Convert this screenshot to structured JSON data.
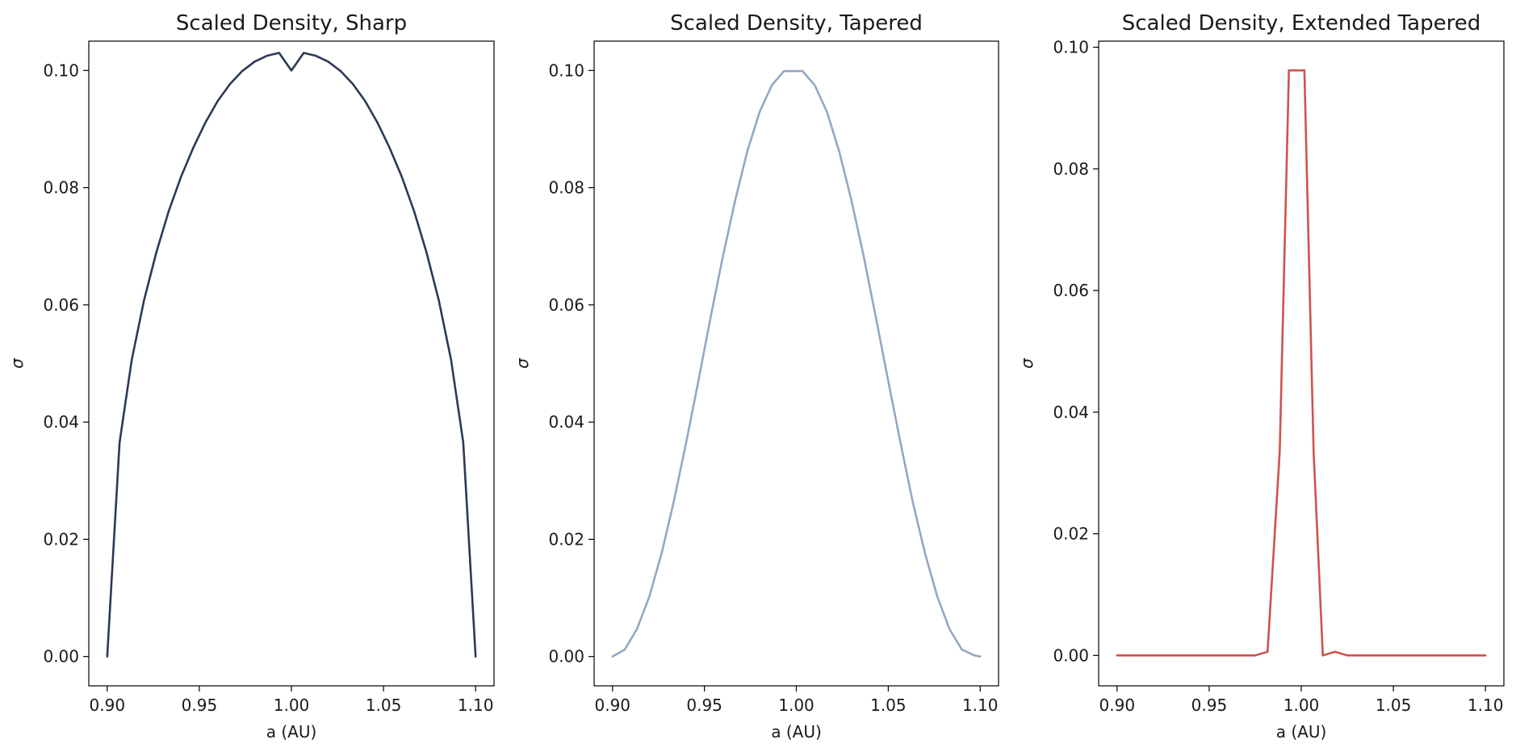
{
  "chart_data": [
    {
      "type": "line",
      "title": "Scaled Density, Sharp",
      "xlabel": "a (AU)",
      "ylabel": "σ",
      "xlim": [
        0.89,
        1.11
      ],
      "ylim": [
        -0.005,
        0.105
      ],
      "xticks": [
        0.9,
        0.95,
        1.0,
        1.05,
        1.1
      ],
      "xtick_labels": [
        "0.90",
        "0.95",
        "1.00",
        "1.05",
        "1.10"
      ],
      "yticks": [
        0.0,
        0.02,
        0.04,
        0.06,
        0.08,
        0.1
      ],
      "ytick_labels": [
        "0.00",
        "0.02",
        "0.04",
        "0.06",
        "0.08",
        "0.10"
      ],
      "grid": false,
      "series": [
        {
          "color": "#2b3a55",
          "x": [
            0.9,
            0.9067,
            0.9133,
            0.92,
            0.9267,
            0.9333,
            0.94,
            0.9467,
            0.9533,
            0.96,
            0.9667,
            0.9733,
            0.98,
            0.9867,
            0.9933,
            1.0,
            1.0067,
            1.0133,
            1.02,
            1.0267,
            1.0333,
            1.04,
            1.0467,
            1.0533,
            1.06,
            1.0667,
            1.0733,
            1.08,
            1.0867,
            1.0933,
            1.1
          ],
          "y": [
            0.0,
            0.0365,
            0.0506,
            0.0608,
            0.069,
            0.0759,
            0.0818,
            0.0868,
            0.0911,
            0.0948,
            0.0977,
            0.0999,
            0.1015,
            0.1025,
            0.103,
            0.1,
            0.103,
            0.1025,
            0.1015,
            0.0999,
            0.0977,
            0.0948,
            0.0911,
            0.0868,
            0.0818,
            0.0759,
            0.069,
            0.0608,
            0.0506,
            0.0365,
            0.0
          ]
        }
      ]
    },
    {
      "type": "line",
      "title": "Scaled Density, Tapered",
      "xlabel": "a (AU)",
      "ylabel": "σ",
      "xlim": [
        0.89,
        1.11
      ],
      "ylim": [
        -0.005,
        0.105
      ],
      "xticks": [
        0.9,
        0.95,
        1.0,
        1.05,
        1.1
      ],
      "xtick_labels": [
        "0.90",
        "0.95",
        "1.00",
        "1.05",
        "1.10"
      ],
      "yticks": [
        0.0,
        0.02,
        0.04,
        0.06,
        0.08,
        0.1
      ],
      "ytick_labels": [
        "0.00",
        "0.02",
        "0.04",
        "0.06",
        "0.08",
        "0.10"
      ],
      "grid": false,
      "series": [
        {
          "color": "#93a8c2",
          "x": [
            0.9,
            0.9067,
            0.9133,
            0.92,
            0.9267,
            0.9333,
            0.94,
            0.9467,
            0.9533,
            0.96,
            0.9667,
            0.9733,
            0.98,
            0.9867,
            0.9933,
            1.0033,
            1.01,
            1.0167,
            1.0233,
            1.03,
            1.0367,
            1.0433,
            1.05,
            1.0567,
            1.0633,
            1.07,
            1.0767,
            1.0833,
            1.09,
            1.0967,
            1.1
          ],
          "y": [
            0.0,
            0.0012,
            0.0047,
            0.0102,
            0.0176,
            0.0264,
            0.0364,
            0.047,
            0.0578,
            0.0682,
            0.0778,
            0.0862,
            0.0929,
            0.0975,
            0.0999,
            0.0999,
            0.0975,
            0.0929,
            0.0862,
            0.0778,
            0.0682,
            0.0578,
            0.047,
            0.0364,
            0.0264,
            0.0176,
            0.0102,
            0.0047,
            0.0012,
            0.0002,
            0.0
          ]
        }
      ]
    },
    {
      "type": "line",
      "title": "Scaled Density, Extended Tapered",
      "xlabel": "a (AU)",
      "ylabel": "σ",
      "xlim": [
        0.89,
        1.11
      ],
      "ylim": [
        -0.005,
        0.101
      ],
      "xticks": [
        0.9,
        0.95,
        1.0,
        1.05,
        1.1
      ],
      "xtick_labels": [
        "0.90",
        "0.95",
        "1.00",
        "1.05",
        "1.10"
      ],
      "yticks": [
        0.0,
        0.02,
        0.04,
        0.06,
        0.08,
        0.1
      ],
      "ytick_labels": [
        "0.00",
        "0.02",
        "0.04",
        "0.06",
        "0.08",
        "0.10"
      ],
      "grid": false,
      "series": [
        {
          "color": "#d0524f",
          "x": [
            0.9,
            0.975,
            0.9817,
            0.9883,
            0.9933,
            1.0017,
            1.0067,
            1.0117,
            1.0183,
            1.025,
            1.1
          ],
          "y": [
            0.0,
            0.0,
            0.0006,
            0.0335,
            0.0962,
            0.0962,
            0.0335,
            0.0,
            0.0006,
            0.0,
            0.0
          ]
        }
      ]
    }
  ]
}
